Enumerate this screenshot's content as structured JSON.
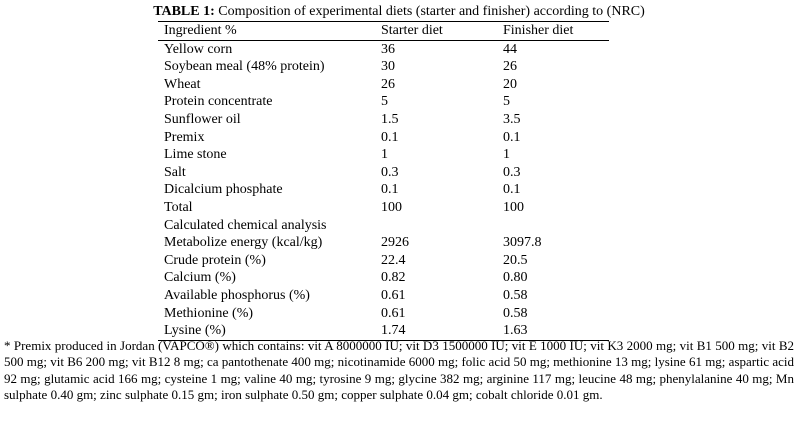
{
  "caption": {
    "label": "TABLE 1:",
    "text": " Composition of experimental diets (starter and finisher) according to (NRC)"
  },
  "table": {
    "headers": [
      "Ingredient %",
      "Starter diet",
      "Finisher diet"
    ],
    "rows": [
      [
        "Yellow corn",
        "36",
        "44"
      ],
      [
        "Soybean meal (48% protein)",
        "30",
        "26"
      ],
      [
        "Wheat",
        "26",
        "20"
      ],
      [
        "Protein concentrate",
        "5",
        "5"
      ],
      [
        "Sunflower oil",
        "1.5",
        "3.5"
      ],
      [
        "Premix",
        "0.1",
        "0.1"
      ],
      [
        "Lime stone",
        "1",
        "1"
      ],
      [
        "Salt",
        "0.3",
        "0.3"
      ],
      [
        "Dicalcium phosphate",
        "0.1",
        "0.1"
      ],
      [
        "Total",
        "100",
        "100"
      ],
      [
        "Calculated chemical analysis",
        "",
        ""
      ],
      [
        "Metabolize energy (kcal/kg)",
        "2926",
        "3097.8"
      ],
      [
        "Crude protein (%)",
        "22.4",
        "20.5"
      ],
      [
        "Calcium (%)",
        "0.82",
        "0.80"
      ],
      [
        "Available phosphorus (%)",
        "0.61",
        "0.58"
      ],
      [
        "Methionine (%)",
        "0.61",
        "0.58"
      ],
      [
        "Lysine (%)",
        "1.74",
        "1.63"
      ]
    ]
  },
  "footnote": "* Premix produced in Jordan (VAPCO®) which contains: vit A 8000000 IU; vit D3 1500000 IU; vit E 1000 IU; vit K3 2000 mg; vit B1 500 mg; vit B2 500 mg; vit B6 200 mg; vit B12 8 mg; ca pantothenate 400 mg; nicotinamide 6000 mg; folic acid 50 mg; methionine 13 mg; lysine 61 mg; aspartic acid 92 mg; glutamic acid 166 mg; cysteine 1 mg; valine 40 mg; tyrosine 9 mg; glycine 382 mg; arginine 117 mg; leucine 48 mg; phenylalanine 40 mg; Mn sulphate 0.40 gm; zinc sulphate 0.15 gm; iron sulphate 0.50 gm; copper sulphate 0.04 gm;  cobalt chloride 0.01 gm."
}
